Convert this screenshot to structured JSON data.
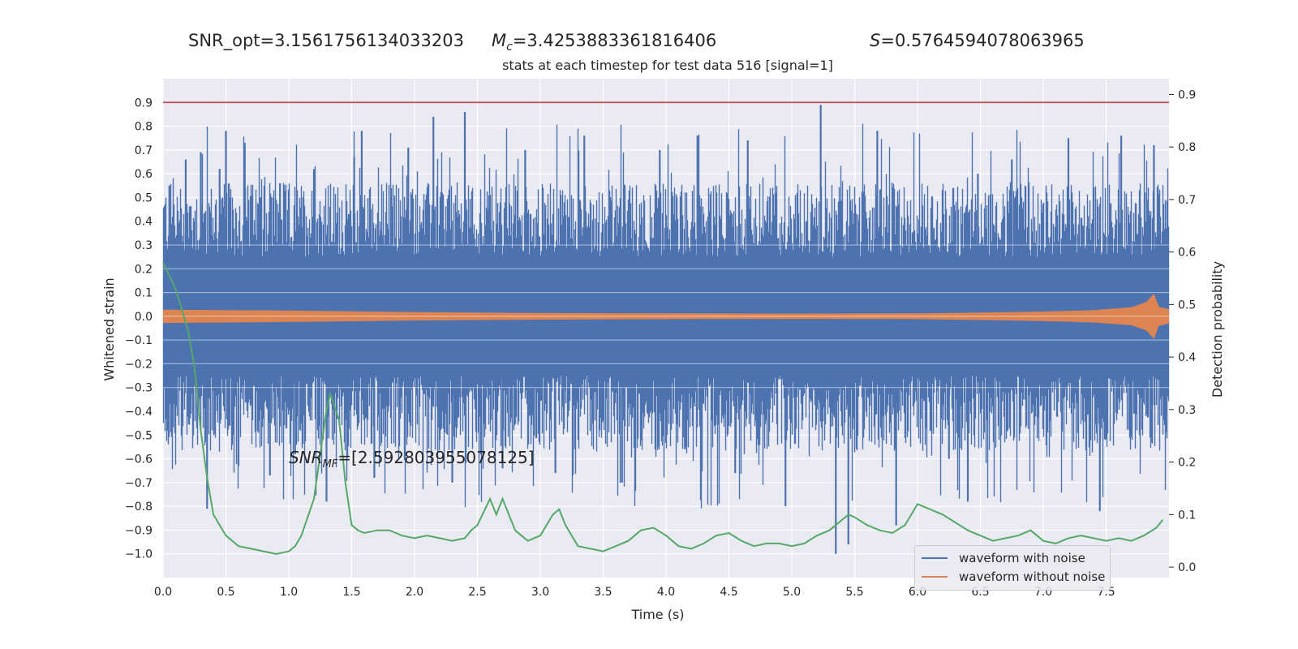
{
  "header": {
    "snr_opt": "SNR_opt=3.1561756134033203",
    "mc_symbol": "M",
    "mc_sub": "c",
    "mc_value": "=3.4253883361816406",
    "s_symbol": "S",
    "s_value": "=0.5764594078063965"
  },
  "annotation": {
    "symbol": "SNR",
    "sub": "MF",
    "value": "=[2.592803955078125]"
  },
  "colors": {
    "with_noise": "#4c72b0",
    "without_noise": "#dd8452",
    "probability": "#55a868",
    "threshold": "#c44e52",
    "plot_bg": "#eaeaf2",
    "grid": "#ffffff"
  },
  "chart_data": {
    "type": "line",
    "title": "stats at each timestep for test data 516 [signal=1]",
    "xlabel": "Time (s)",
    "ylabel": "Whitened strain",
    "y2label": "Detection probability",
    "xlim": [
      0.0,
      8.0
    ],
    "ylim": [
      -1.1,
      1.0
    ],
    "y2lim": [
      -0.02,
      0.93
    ],
    "xticks": [
      0.0,
      0.5,
      1.0,
      1.5,
      2.0,
      2.5,
      3.0,
      3.5,
      4.0,
      4.5,
      5.0,
      5.5,
      6.0,
      6.5,
      7.0,
      7.5
    ],
    "xtick_labels": [
      "0.0",
      "0.5",
      "1.0",
      "1.5",
      "2.0",
      "2.5",
      "3.0",
      "3.5",
      "4.0",
      "4.5",
      "5.0",
      "5.5",
      "6.0",
      "6.5",
      "7.0",
      "7.5"
    ],
    "yticks": [
      0.9,
      0.8,
      0.7,
      0.6,
      0.5,
      0.4,
      0.3,
      0.2,
      0.1,
      0.0,
      -0.1,
      -0.2,
      -0.3,
      -0.4,
      -0.5,
      -0.6,
      -0.7,
      -0.8,
      -0.9,
      -1.0
    ],
    "ytick_labels": [
      "0.9",
      "0.8",
      "0.7",
      "0.6",
      "0.5",
      "0.4",
      "0.3",
      "0.2",
      "0.1",
      "0.0",
      "−0.1",
      "−0.2",
      "−0.3",
      "−0.4",
      "−0.5",
      "−0.6",
      "−0.7",
      "−0.8",
      "−0.9",
      "−1.0"
    ],
    "y2ticks": [
      0.9,
      0.8,
      0.7,
      0.6,
      0.5,
      0.4,
      0.3,
      0.2,
      0.1,
      0.0
    ],
    "y2tick_labels": [
      "0.9",
      "0.8",
      "0.7",
      "0.6",
      "0.5",
      "0.4",
      "0.3",
      "0.2",
      "0.1",
      "0.0"
    ],
    "grid": true,
    "legend_position": "lower-right",
    "threshold": {
      "value": 0.9,
      "axis": "left"
    },
    "noise_band": {
      "min": -0.42,
      "max": 0.42,
      "peak_max": 0.89,
      "peak_min": -1.0
    },
    "noise_spikes": [
      {
        "t": 0.05,
        "y": 0.55
      },
      {
        "t": 0.18,
        "y": 0.66
      },
      {
        "t": 0.22,
        "y": -0.41
      },
      {
        "t": 0.3,
        "y": 0.69
      },
      {
        "t": 0.35,
        "y": -0.81
      },
      {
        "t": 0.45,
        "y": 0.62
      },
      {
        "t": 0.5,
        "y": 0.78
      },
      {
        "t": 0.6,
        "y": -0.63
      },
      {
        "t": 0.65,
        "y": 0.73
      },
      {
        "t": 0.85,
        "y": -0.67
      },
      {
        "t": 0.93,
        "y": 0.56
      },
      {
        "t": 1.05,
        "y": -0.58
      },
      {
        "t": 1.2,
        "y": 0.62
      },
      {
        "t": 1.3,
        "y": -0.78
      },
      {
        "t": 1.52,
        "y": 0.67
      },
      {
        "t": 1.58,
        "y": 0.78
      },
      {
        "t": 1.68,
        "y": -0.68
      },
      {
        "t": 1.95,
        "y": 0.71
      },
      {
        "t": 2.15,
        "y": 0.84
      },
      {
        "t": 2.3,
        "y": -0.7
      },
      {
        "t": 2.4,
        "y": 0.86
      },
      {
        "t": 2.7,
        "y": -0.64
      },
      {
        "t": 2.88,
        "y": 0.7
      },
      {
        "t": 3.12,
        "y": -0.66
      },
      {
        "t": 3.35,
        "y": 0.76
      },
      {
        "t": 3.65,
        "y": -0.7
      },
      {
        "t": 3.95,
        "y": 0.7
      },
      {
        "t": 4.15,
        "y": -0.56
      },
      {
        "t": 4.25,
        "y": 0.76
      },
      {
        "t": 4.55,
        "y": -0.66
      },
      {
        "t": 4.65,
        "y": 0.74
      },
      {
        "t": 4.95,
        "y": -0.8
      },
      {
        "t": 5.23,
        "y": 0.89
      },
      {
        "t": 5.35,
        "y": -1.0
      },
      {
        "t": 5.45,
        "y": -0.96
      },
      {
        "t": 5.68,
        "y": 0.78
      },
      {
        "t": 5.83,
        "y": -0.88
      },
      {
        "t": 6.25,
        "y": -0.6
      },
      {
        "t": 6.4,
        "y": -0.78
      },
      {
        "t": 6.48,
        "y": 0.6
      },
      {
        "t": 6.75,
        "y": 0.66
      },
      {
        "t": 7.2,
        "y": 0.75
      },
      {
        "t": 7.45,
        "y": -0.82
      },
      {
        "t": 7.62,
        "y": 0.76
      },
      {
        "t": 7.88,
        "y": 0.72
      }
    ],
    "series": [
      {
        "name": "waveform with noise",
        "color": "#4c72b0",
        "axis": "left"
      },
      {
        "name": "waveform without noise",
        "color": "#dd8452",
        "axis": "left",
        "envelope": [
          {
            "t": 0.0,
            "a": 0.028
          },
          {
            "t": 1.0,
            "a": 0.024
          },
          {
            "t": 2.0,
            "a": 0.018
          },
          {
            "t": 3.0,
            "a": 0.014
          },
          {
            "t": 4.0,
            "a": 0.012
          },
          {
            "t": 5.0,
            "a": 0.011
          },
          {
            "t": 6.0,
            "a": 0.012
          },
          {
            "t": 6.5,
            "a": 0.016
          },
          {
            "t": 7.0,
            "a": 0.02
          },
          {
            "t": 7.4,
            "a": 0.026
          },
          {
            "t": 7.7,
            "a": 0.038
          },
          {
            "t": 7.82,
            "a": 0.06
          },
          {
            "t": 7.88,
            "a": 0.095
          },
          {
            "t": 7.92,
            "a": 0.04
          },
          {
            "t": 8.0,
            "a": 0.03
          }
        ]
      },
      {
        "name": "Detection probability",
        "color": "#55a868",
        "axis": "right",
        "t": [
          0.0,
          0.1,
          0.2,
          0.25,
          0.3,
          0.35,
          0.4,
          0.5,
          0.6,
          0.7,
          0.8,
          0.9,
          1.0,
          1.05,
          1.1,
          1.2,
          1.3,
          1.33,
          1.4,
          1.45,
          1.5,
          1.55,
          1.6,
          1.7,
          1.8,
          1.9,
          2.0,
          2.1,
          2.2,
          2.3,
          2.4,
          2.45,
          2.5,
          2.6,
          2.65,
          2.7,
          2.8,
          2.85,
          2.9,
          3.0,
          3.1,
          3.15,
          3.2,
          3.3,
          3.4,
          3.5,
          3.6,
          3.7,
          3.8,
          3.9,
          4.0,
          4.1,
          4.2,
          4.3,
          4.4,
          4.5,
          4.6,
          4.7,
          4.8,
          4.9,
          5.0,
          5.1,
          5.2,
          5.3,
          5.4,
          5.45,
          5.5,
          5.6,
          5.7,
          5.8,
          5.9,
          6.0,
          6.1,
          6.2,
          6.3,
          6.4,
          6.5,
          6.6,
          6.7,
          6.8,
          6.9,
          7.0,
          7.1,
          7.2,
          7.3,
          7.4,
          7.5,
          7.6,
          7.7,
          7.8,
          7.9,
          7.95
        ],
        "p": [
          0.58,
          0.53,
          0.45,
          0.38,
          0.26,
          0.17,
          0.1,
          0.06,
          0.04,
          0.035,
          0.03,
          0.025,
          0.03,
          0.04,
          0.06,
          0.13,
          0.3,
          0.33,
          0.28,
          0.16,
          0.08,
          0.07,
          0.065,
          0.07,
          0.07,
          0.06,
          0.055,
          0.06,
          0.055,
          0.05,
          0.055,
          0.07,
          0.08,
          0.13,
          0.1,
          0.13,
          0.07,
          0.06,
          0.05,
          0.06,
          0.1,
          0.11,
          0.08,
          0.04,
          0.035,
          0.03,
          0.04,
          0.05,
          0.07,
          0.075,
          0.06,
          0.04,
          0.035,
          0.045,
          0.06,
          0.065,
          0.05,
          0.04,
          0.045,
          0.045,
          0.04,
          0.045,
          0.06,
          0.07,
          0.09,
          0.1,
          0.095,
          0.08,
          0.07,
          0.065,
          0.08,
          0.12,
          0.11,
          0.1,
          0.085,
          0.07,
          0.06,
          0.05,
          0.055,
          0.06,
          0.07,
          0.05,
          0.045,
          0.055,
          0.06,
          0.055,
          0.05,
          0.055,
          0.05,
          0.06,
          0.075,
          0.09
        ]
      }
    ]
  }
}
